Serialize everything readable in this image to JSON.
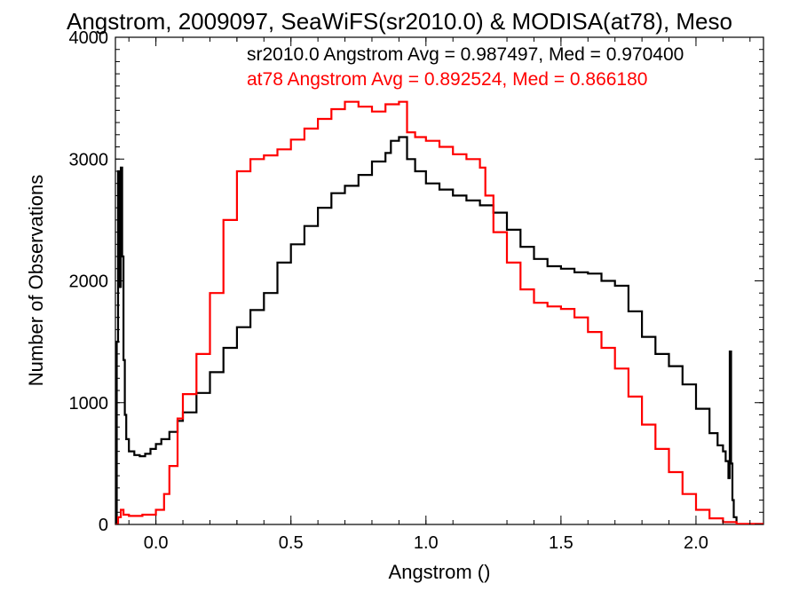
{
  "chart_data": {
    "type": "line",
    "title": "Angstrom, 2009097, SeaWiFS(sr2010.0) & MODISA(at78), Meso",
    "xlabel": "Angstrom ()",
    "ylabel": "Number of Observations",
    "xlim": [
      -0.15,
      2.25
    ],
    "ylim": [
      0,
      4000
    ],
    "x_ticks": [
      0.0,
      0.5,
      1.0,
      1.5,
      2.0
    ],
    "x_tick_labels": [
      "0.0",
      "0.5",
      "1.0",
      "1.5",
      "2.0"
    ],
    "y_ticks": [
      0,
      1000,
      2000,
      3000,
      4000
    ],
    "y_tick_labels": [
      "0",
      "1000",
      "2000",
      "3000",
      "4000"
    ],
    "grid": false,
    "step": true,
    "annotations": [
      {
        "text": "sr2010.0 Angstrom Avg = 0.987497, Med = 0.970400",
        "color": "#000000"
      },
      {
        "text": "at78 Angstrom Avg = 0.892524, Med = 0.866180",
        "color": "#ff0000"
      }
    ],
    "series": [
      {
        "color": "#000000",
        "points": [
          [
            -0.15,
            0
          ],
          [
            -0.145,
            1500
          ],
          [
            -0.14,
            2900
          ],
          [
            -0.135,
            1950
          ],
          [
            -0.13,
            2930
          ],
          [
            -0.125,
            2200
          ],
          [
            -0.12,
            1350
          ],
          [
            -0.115,
            900
          ],
          [
            -0.11,
            700
          ],
          [
            -0.1,
            600
          ],
          [
            -0.08,
            570
          ],
          [
            -0.06,
            560
          ],
          [
            -0.04,
            580
          ],
          [
            -0.02,
            620
          ],
          [
            0.0,
            660
          ],
          [
            0.02,
            700
          ],
          [
            0.05,
            760
          ],
          [
            0.08,
            850
          ],
          [
            0.1,
            920
          ],
          [
            0.15,
            1080
          ],
          [
            0.2,
            1250
          ],
          [
            0.25,
            1450
          ],
          [
            0.3,
            1620
          ],
          [
            0.35,
            1760
          ],
          [
            0.4,
            1900
          ],
          [
            0.45,
            2150
          ],
          [
            0.5,
            2300
          ],
          [
            0.55,
            2450
          ],
          [
            0.6,
            2600
          ],
          [
            0.65,
            2720
          ],
          [
            0.7,
            2780
          ],
          [
            0.75,
            2870
          ],
          [
            0.8,
            2980
          ],
          [
            0.85,
            3050
          ],
          [
            0.87,
            3150
          ],
          [
            0.9,
            3180
          ],
          [
            0.93,
            3000
          ],
          [
            0.96,
            2900
          ],
          [
            1.0,
            2800
          ],
          [
            1.05,
            2750
          ],
          [
            1.1,
            2700
          ],
          [
            1.15,
            2660
          ],
          [
            1.2,
            2620
          ],
          [
            1.25,
            2560
          ],
          [
            1.3,
            2420
          ],
          [
            1.35,
            2280
          ],
          [
            1.4,
            2180
          ],
          [
            1.45,
            2120
          ],
          [
            1.5,
            2100
          ],
          [
            1.55,
            2070
          ],
          [
            1.6,
            2060
          ],
          [
            1.65,
            2000
          ],
          [
            1.7,
            1960
          ],
          [
            1.75,
            1750
          ],
          [
            1.8,
            1540
          ],
          [
            1.85,
            1400
          ],
          [
            1.9,
            1300
          ],
          [
            1.95,
            1150
          ],
          [
            2.0,
            950
          ],
          [
            2.05,
            750
          ],
          [
            2.08,
            650
          ],
          [
            2.1,
            600
          ],
          [
            2.11,
            520
          ],
          [
            2.12,
            380
          ],
          [
            2.125,
            1420
          ],
          [
            2.13,
            500
          ],
          [
            2.135,
            200
          ],
          [
            2.14,
            60
          ],
          [
            2.15,
            0
          ]
        ]
      },
      {
        "color": "#ff0000",
        "points": [
          [
            -0.15,
            0
          ],
          [
            -0.14,
            60
          ],
          [
            -0.13,
            120
          ],
          [
            -0.12,
            80
          ],
          [
            -0.1,
            70
          ],
          [
            -0.05,
            80
          ],
          [
            0.0,
            120
          ],
          [
            0.03,
            250
          ],
          [
            0.05,
            480
          ],
          [
            0.08,
            870
          ],
          [
            0.1,
            1070
          ],
          [
            0.15,
            1400
          ],
          [
            0.2,
            1900
          ],
          [
            0.25,
            2500
          ],
          [
            0.3,
            2900
          ],
          [
            0.35,
            3000
          ],
          [
            0.4,
            3030
          ],
          [
            0.45,
            3080
          ],
          [
            0.5,
            3160
          ],
          [
            0.55,
            3250
          ],
          [
            0.6,
            3330
          ],
          [
            0.65,
            3410
          ],
          [
            0.7,
            3470
          ],
          [
            0.75,
            3430
          ],
          [
            0.8,
            3390
          ],
          [
            0.85,
            3450
          ],
          [
            0.9,
            3470
          ],
          [
            0.93,
            3220
          ],
          [
            0.96,
            3180
          ],
          [
            1.0,
            3150
          ],
          [
            1.05,
            3100
          ],
          [
            1.1,
            3040
          ],
          [
            1.15,
            3000
          ],
          [
            1.2,
            2930
          ],
          [
            1.22,
            2700
          ],
          [
            1.25,
            2400
          ],
          [
            1.3,
            2150
          ],
          [
            1.35,
            1930
          ],
          [
            1.4,
            1820
          ],
          [
            1.45,
            1790
          ],
          [
            1.5,
            1770
          ],
          [
            1.55,
            1700
          ],
          [
            1.6,
            1580
          ],
          [
            1.65,
            1450
          ],
          [
            1.7,
            1280
          ],
          [
            1.75,
            1050
          ],
          [
            1.8,
            820
          ],
          [
            1.85,
            620
          ],
          [
            1.9,
            430
          ],
          [
            1.95,
            250
          ],
          [
            2.0,
            120
          ],
          [
            2.05,
            50
          ],
          [
            2.1,
            20
          ],
          [
            2.15,
            5
          ],
          [
            2.25,
            0
          ]
        ]
      }
    ]
  }
}
